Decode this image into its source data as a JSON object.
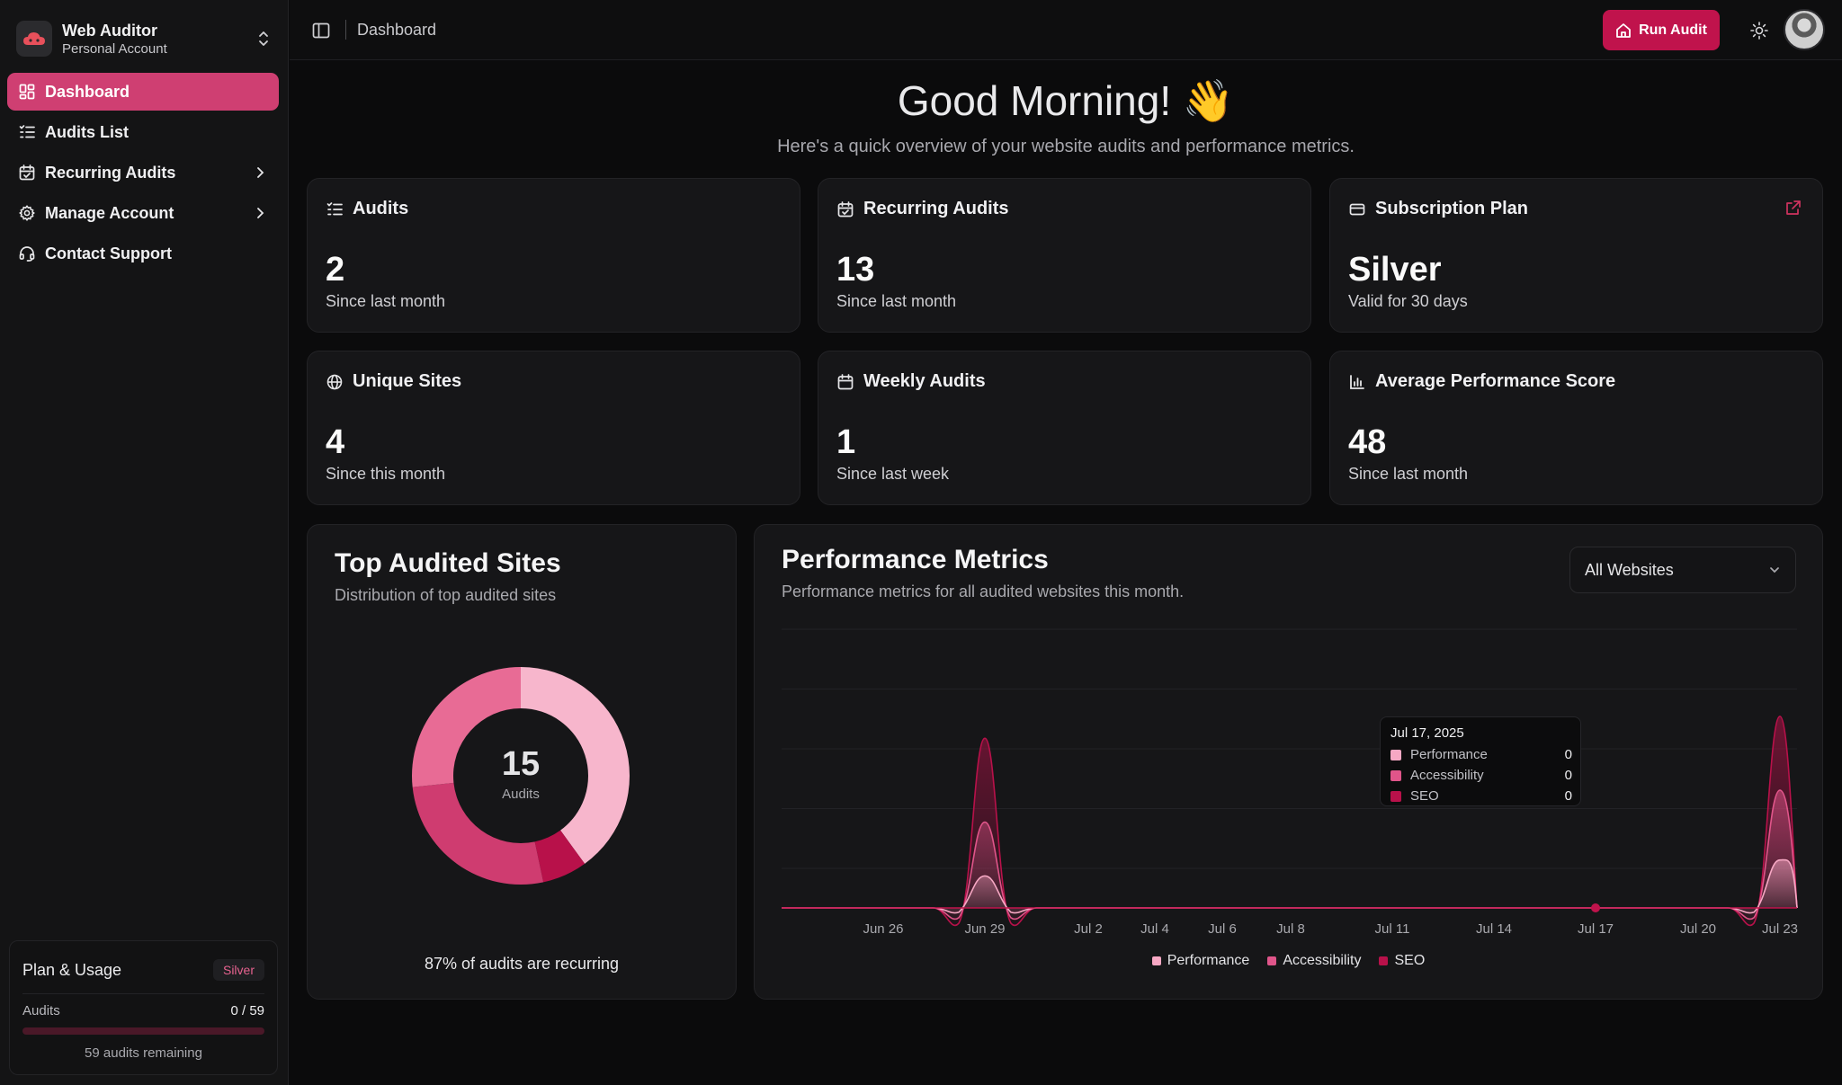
{
  "app": {
    "brand_name": "Web Auditor",
    "brand_sub": "Personal Account",
    "logo_icon": "cloud-logo-icon"
  },
  "colors": {
    "accent": "#cf3f72",
    "run_button": "#c0134c",
    "performance": "#f7a8c4",
    "accessibility": "#e0558a",
    "seo": "#b8114a"
  },
  "sidebar": {
    "items": [
      {
        "label": "Dashboard",
        "icon": "dashboard-icon",
        "active": true
      },
      {
        "label": "Audits List",
        "icon": "list-icon"
      },
      {
        "label": "Recurring Audits",
        "icon": "calendar-check-icon",
        "chevron": true
      },
      {
        "label": "Manage Account",
        "icon": "gear-icon",
        "chevron": true
      },
      {
        "label": "Contact Support",
        "icon": "headset-icon"
      }
    ]
  },
  "plan": {
    "title": "Plan & Usage",
    "badge": "Silver",
    "audits_label": "Audits",
    "audits_value": "0 / 59",
    "usage_fraction": 0,
    "remaining": "59 audits remaining"
  },
  "topbar": {
    "breadcrumb": "Dashboard",
    "run_audit": "Run Audit"
  },
  "greeting": {
    "title": "Good Morning! 👋",
    "subtitle": "Here's a quick overview of your website audits and performance metrics."
  },
  "stats": [
    {
      "title": "Audits",
      "value": "2",
      "sub": "Since last month",
      "icon": "list-icon"
    },
    {
      "title": "Recurring Audits",
      "value": "13",
      "sub": "Since last month",
      "icon": "calendar-check-icon"
    },
    {
      "title": "Subscription Plan",
      "value": "Silver",
      "sub": "Valid for 30 days",
      "icon": "credit-card-icon"
    },
    {
      "title": "Unique Sites",
      "value": "4",
      "sub": "Since this month",
      "icon": "globe-icon"
    },
    {
      "title": "Weekly Audits",
      "value": "1",
      "sub": "Since last week",
      "icon": "calendar-icon"
    },
    {
      "title": "Average Performance Score",
      "value": "48",
      "sub": "Since last month",
      "icon": "bar-chart-icon"
    }
  ],
  "top_sites": {
    "title": "Top Audited Sites",
    "subtitle": "Distribution of top audited sites",
    "center_value": "15",
    "center_label": "Audits",
    "footer": "87% of audits are recurring"
  },
  "performance": {
    "title": "Performance Metrics",
    "subtitle": "Performance metrics for all audited websites this month.",
    "select_value": "All Websites",
    "tooltip": {
      "date": "Jul 17, 2025",
      "rows": [
        {
          "label": "Performance",
          "value": "0"
        },
        {
          "label": "Accessibility",
          "value": "0"
        },
        {
          "label": "SEO",
          "value": "0"
        }
      ]
    }
  },
  "chart_data": [
    {
      "type": "pie",
      "categories": [
        "",
        "",
        "",
        ""
      ],
      "values": [
        6,
        1,
        4,
        4
      ],
      "colors": [
        "#f7b6cc",
        "#b8114a",
        "#cf3c70",
        "#e86b95"
      ]
    },
    {
      "type": "area",
      "x_ticks": [
        "Jun 26",
        "Jun 29",
        "Jul 2",
        "Jul 4",
        "Jul 6",
        "Jul 8",
        "Jul 11",
        "Jul 14",
        "Jul 17",
        "Jul 20",
        "Jul 23"
      ],
      "legend": [
        "Performance",
        "Accessibility",
        "SEO"
      ],
      "legend_position": "bottom",
      "ylim": [
        0,
        100
      ],
      "grid": true,
      "series": [
        {
          "name": "Performance",
          "points": [
            [
              "Jun 29",
              16
            ],
            [
              "Jul 23",
              24
            ]
          ]
        },
        {
          "name": "Accessibility",
          "points": [
            [
              "Jun 29",
              43
            ],
            [
              "Jul 23",
              59
            ]
          ]
        },
        {
          "name": "SEO",
          "points": [
            [
              "Jun 29",
              85
            ],
            [
              "Jul 23",
              96
            ]
          ]
        }
      ],
      "highlight": "Jul 17"
    }
  ]
}
